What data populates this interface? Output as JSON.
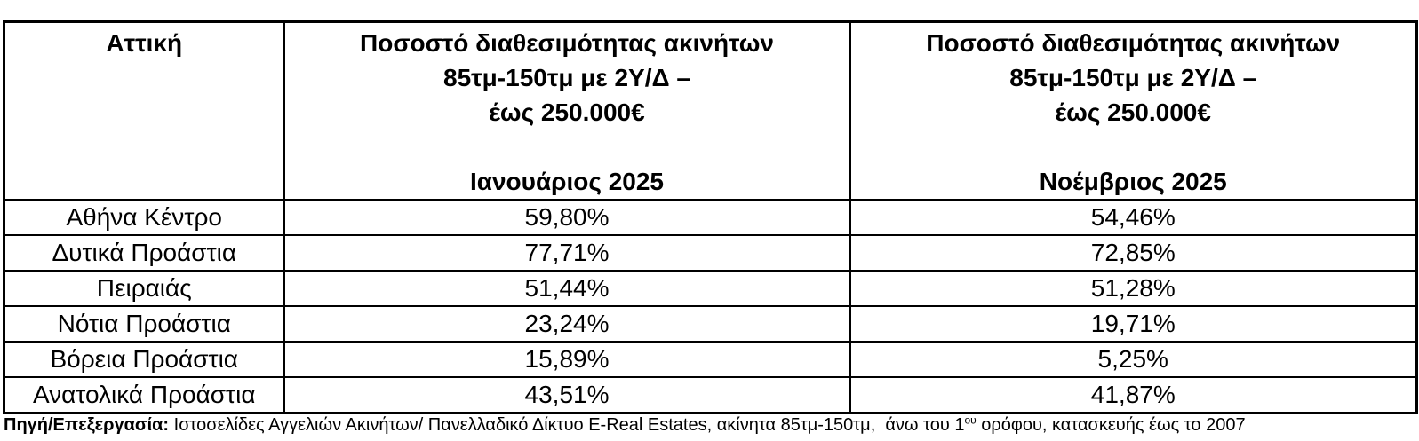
{
  "page": {
    "background_color": "#ffffff",
    "text_color": "#000000",
    "border_color": "#000000"
  },
  "table": {
    "header": {
      "region": {
        "lines": [
          "Αττική"
        ]
      },
      "jan": {
        "lines": [
          "Ποσοστό διαθεσιμότητας ακινήτων",
          "85τμ-150τμ με 2Υ/Δ –",
          "έως 250.000€",
          "",
          "Ιανουάριος 2025"
        ]
      },
      "nov": {
        "lines": [
          "Ποσοστό διαθεσιμότητας ακινήτων",
          "85τμ-150τμ με 2Υ/Δ –",
          "έως 250.000€",
          "",
          "Νοέμβριος 2025"
        ]
      }
    },
    "rows": [
      {
        "region": "Αθήνα Κέντρο",
        "jan_2025": "59,80%",
        "nov_2025": "54,46%"
      },
      {
        "region": "Δυτικά Προάστια",
        "jan_2025": "77,71%",
        "nov_2025": "72,85%"
      },
      {
        "region": "Πειραιάς",
        "jan_2025": "51,44%",
        "nov_2025": "51,28%"
      },
      {
        "region": "Νότια Προάστια",
        "jan_2025": "23,24%",
        "nov_2025": "19,71%"
      },
      {
        "region": "Βόρεια Προάστια",
        "jan_2025": "15,89%",
        "nov_2025": "5,25%"
      },
      {
        "region": "Ανατολικά Προάστια",
        "jan_2025": "43,51%",
        "nov_2025": "41,87%"
      }
    ]
  },
  "footer": {
    "label": "Πηγή/Επεξεργασία:",
    "before_sup": " Ιστοσελίδες Αγγελιών Ακινήτων/ Πανελλαδικό Δίκτυο E-Real Estates, ακίνητα 85τμ-150τμ,  άνω του 1",
    "sup": "ου",
    "after_sup": " ορόφου, κατασκευής έως το 2007"
  },
  "chart_data": {
    "type": "table",
    "title": "Ποσοστό διαθεσιμότητας ακινήτων 85τμ-150τμ με 2Υ/Δ – έως 250.000€ (Αττική)",
    "columns": [
      "Αττική",
      "Ποσοστό διαθεσιμότητας ακινήτων 85τμ-150τμ με 2Υ/Δ – έως 250.000€ | Ιανουάριος 2025",
      "Ποσοστό διαθεσιμότητας ακινήτων 85τμ-150τμ με 2Υ/Δ – έως 250.000€ | Νοέμβριος 2025"
    ],
    "categories": [
      "Αθήνα Κέντρο",
      "Δυτικά Προάστια",
      "Πειραιάς",
      "Νότια Προάστια",
      "Βόρεια Προάστια",
      "Ανατολικά Προάστια"
    ],
    "series": [
      {
        "name": "Ιανουάριος 2025",
        "values": [
          59.8,
          77.71,
          51.44,
          23.24,
          15.89,
          43.51
        ]
      },
      {
        "name": "Νοέμβριος 2025",
        "values": [
          54.46,
          72.85,
          51.28,
          19.71,
          5.25,
          41.87
        ]
      }
    ],
    "unit": "%",
    "source_note": "Πηγή/Επεξεργασία: Ιστοσελίδες Αγγελιών Ακινήτων/ Πανελλαδικό Δίκτυο E-Real Estates, ακίνητα 85τμ-150τμ,  άνω του 1ου ορόφου, κατασκευής έως το 2007"
  }
}
